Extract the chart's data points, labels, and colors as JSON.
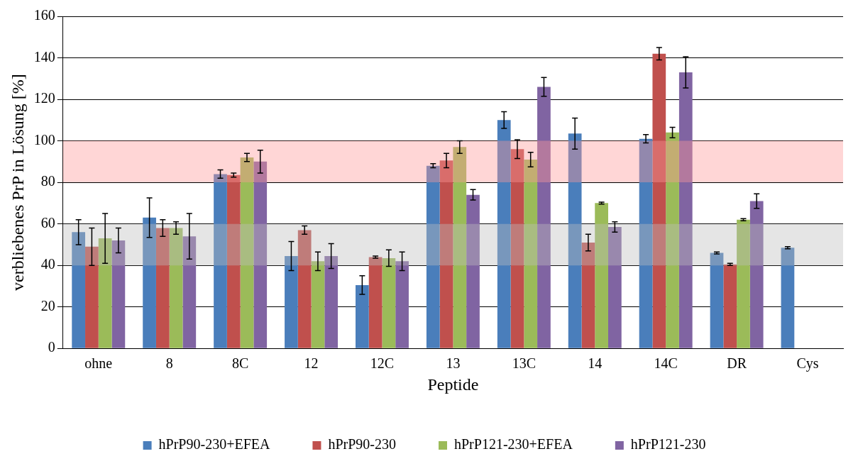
{
  "chart_data": {
    "type": "bar",
    "xlabel": "Peptide",
    "ylabel": "verbliebenes PrP in Lösung [%]",
    "categories": [
      "ohne",
      "8",
      "8C",
      "12",
      "12C",
      "13",
      "13C",
      "14",
      "14C",
      "DR",
      "Cys"
    ],
    "series": [
      {
        "name": "hPrP90-230+EFEA",
        "color": "#4a7ebb",
        "values": [
          56,
          63,
          84,
          44.5,
          30.5,
          88,
          110,
          103.5,
          101,
          46,
          48.5
        ],
        "errors": [
          6,
          9.5,
          2,
          7,
          4.5,
          1,
          4,
          7.5,
          2,
          0.5,
          0.5
        ]
      },
      {
        "name": "hPrP90-230",
        "color": "#c0504d",
        "values": [
          49,
          58,
          83.5,
          57,
          44,
          90.5,
          96,
          51,
          142,
          40.5,
          null
        ],
        "errors": [
          9,
          4,
          1,
          2,
          0.5,
          3.5,
          4.5,
          4,
          3,
          0.5,
          null
        ]
      },
      {
        "name": "hPrP121-230+EFEA",
        "color": "#9bbb59",
        "values": [
          53,
          58,
          92,
          42,
          43.5,
          97,
          91,
          70,
          104,
          62,
          null
        ],
        "errors": [
          12,
          3,
          2,
          4.5,
          4,
          3,
          3.5,
          0.5,
          2.5,
          0.5,
          null
        ]
      },
      {
        "name": "hPrP121-230",
        "color": "#8064a2",
        "values": [
          52,
          54,
          90,
          44.5,
          42,
          74,
          126,
          58.5,
          133,
          71,
          null
        ],
        "errors": [
          6,
          11,
          5.5,
          6,
          4.5,
          2.5,
          4.5,
          2.5,
          7.5,
          3.5,
          null
        ]
      }
    ],
    "ylim": [
      0,
      160
    ],
    "yticks": [
      0,
      20,
      40,
      60,
      80,
      100,
      120,
      140,
      160
    ],
    "grid": "y",
    "legend": "bottom",
    "bands": [
      {
        "axis": "y",
        "from": 80,
        "to": 100,
        "color": "#ff9999"
      },
      {
        "axis": "y",
        "from": 40,
        "to": 60,
        "color": "#bfbfbf"
      }
    ]
  }
}
